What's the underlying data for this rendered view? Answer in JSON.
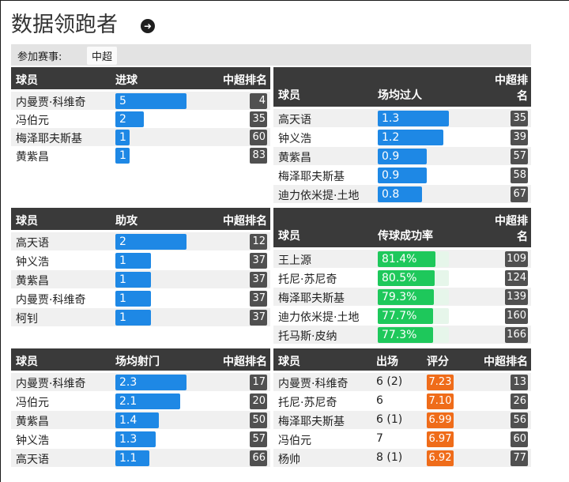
{
  "page": {
    "title": "数据领跑者"
  },
  "filter": {
    "label": "参加赛事:",
    "value": "中超"
  },
  "goals": {
    "headers": {
      "player": "球员",
      "stat": "进球",
      "rank": "中超排名"
    },
    "rows": [
      {
        "name": "内曼贾·科维奇",
        "value": "5",
        "level": 1.0,
        "rank": "4"
      },
      {
        "name": "冯伯元",
        "value": "2",
        "level": 0.4,
        "rank": "35"
      },
      {
        "name": "梅泽耶夫斯基",
        "value": "1",
        "level": 0.2,
        "rank": "60"
      },
      {
        "name": "黄紫昌",
        "value": "1",
        "level": 0.2,
        "rank": "83"
      }
    ]
  },
  "dribbles": {
    "headers": {
      "player": "球员",
      "stat": "场均过人",
      "rank_line1": "中超排",
      "rank_line2": "名"
    },
    "rows": [
      {
        "name": "高天语",
        "value": "1.3",
        "level": 1.0,
        "rank": "35"
      },
      {
        "name": "钟义浩",
        "value": "1.2",
        "level": 0.92,
        "rank": "39"
      },
      {
        "name": "黄紫昌",
        "value": "0.9",
        "level": 0.69,
        "rank": "57"
      },
      {
        "name": "梅泽耶夫斯基",
        "value": "0.9",
        "level": 0.69,
        "rank": "58"
      },
      {
        "name": "迪力依米提·土地",
        "value": "0.8",
        "level": 0.62,
        "rank": "67"
      }
    ]
  },
  "assists": {
    "headers": {
      "player": "球员",
      "stat": "助攻",
      "rank": "中超排名"
    },
    "rows": [
      {
        "name": "高天语",
        "value": "2",
        "level": 1.0,
        "rank": "12"
      },
      {
        "name": "钟义浩",
        "value": "1",
        "level": 0.5,
        "rank": "37"
      },
      {
        "name": "黄紫昌",
        "value": "1",
        "level": 0.5,
        "rank": "37"
      },
      {
        "name": "内曼贾·科维奇",
        "value": "1",
        "level": 0.5,
        "rank": "37"
      },
      {
        "name": "柯钊",
        "value": "1",
        "level": 0.5,
        "rank": "37"
      }
    ]
  },
  "passing": {
    "headers": {
      "player": "球员",
      "stat": "传球成功率",
      "rank_line1": "中超排",
      "rank_line2": "名"
    },
    "rows": [
      {
        "name": "王上源",
        "value": "81.4%",
        "level": 0.814,
        "rank": "109"
      },
      {
        "name": "托尼·苏尼奇",
        "value": "80.5%",
        "level": 0.805,
        "rank": "124"
      },
      {
        "name": "梅泽耶夫斯基",
        "value": "79.3%",
        "level": 0.793,
        "rank": "139"
      },
      {
        "name": "迪力依米提·土地",
        "value": "77.7%",
        "level": 0.777,
        "rank": "160"
      },
      {
        "name": "托马斯·皮纳",
        "value": "77.3%",
        "level": 0.773,
        "rank": "166"
      }
    ]
  },
  "shots": {
    "headers": {
      "player": "球员",
      "stat": "场均射门",
      "rank": "中超排名"
    },
    "rows": [
      {
        "name": "内曼贾·科维奇",
        "value": "2.3",
        "level": 1.0,
        "rank": "17"
      },
      {
        "name": "冯伯元",
        "value": "2.1",
        "level": 0.91,
        "rank": "20"
      },
      {
        "name": "黄紫昌",
        "value": "1.4",
        "level": 0.61,
        "rank": "50"
      },
      {
        "name": "钟义浩",
        "value": "1.3",
        "level": 0.57,
        "rank": "57"
      },
      {
        "name": "高天语",
        "value": "1.1",
        "level": 0.48,
        "rank": "66"
      }
    ]
  },
  "ratings": {
    "headers": {
      "player": "球员",
      "apps": "出场",
      "rating": "评分",
      "rank": "中超排名"
    },
    "rows": [
      {
        "name": "内曼贾·科维奇",
        "apps": "6 (2)",
        "rating": "7.23",
        "rank": "13"
      },
      {
        "name": "托尼·苏尼奇",
        "apps": "6",
        "rating": "7.10",
        "rank": "26"
      },
      {
        "name": "梅泽耶夫斯基",
        "apps": "6 (1)",
        "rating": "6.99",
        "rank": "56"
      },
      {
        "name": "冯伯元",
        "apps": "7",
        "rating": "6.97",
        "rank": "60"
      },
      {
        "name": "杨帅",
        "apps": "8 (1)",
        "rating": "6.92",
        "rank": "77"
      }
    ]
  },
  "colors": {
    "bar_blue": "#1e88e5",
    "bar_green": "#1ec85b",
    "rating_orange": "#ef6c1a",
    "header_dark": "#3a3a3a"
  }
}
